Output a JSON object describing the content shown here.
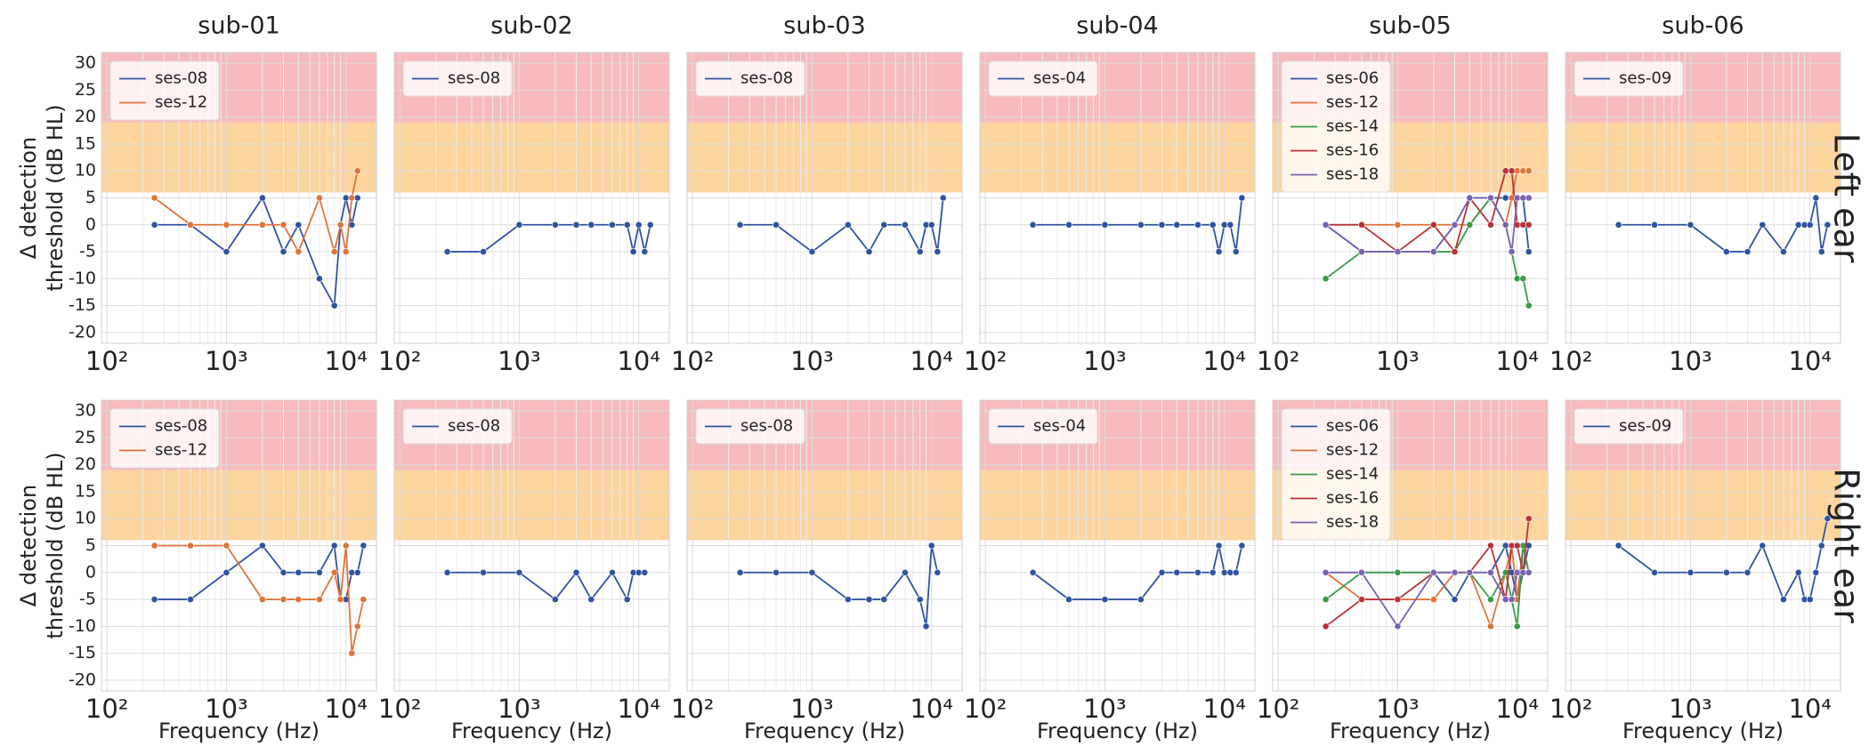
{
  "chart_data": [
    {
      "type": "line",
      "title": "sub-01",
      "ylabel": "Δ detection\nthreshold (dB HL)",
      "ytick_labels": true,
      "x": [
        250,
        500,
        1000,
        2000,
        3000,
        4000,
        6000,
        8000,
        9000,
        10000,
        11200,
        12500
      ],
      "series": [
        {
          "name": "ses-08",
          "color": "#2f53a0",
          "values": [
            0,
            0,
            -5,
            5,
            -5,
            0,
            -10,
            -15,
            0,
            5,
            0,
            5
          ]
        },
        {
          "name": "ses-12",
          "color": "#dd7439",
          "values": [
            5,
            0,
            0,
            0,
            0,
            -5,
            5,
            -5,
            0,
            -5,
            5,
            10
          ]
        }
      ],
      "xlim": [
        90,
        18000
      ],
      "log_x": true,
      "ylim": [
        -22,
        32
      ],
      "xticks": [
        {
          "value": 100,
          "label": "10²"
        },
        {
          "value": 1000,
          "label": "10³"
        },
        {
          "value": 10000,
          "label": "10⁴"
        }
      ],
      "yticks": [
        -20,
        -15,
        -10,
        -5,
        0,
        5,
        10,
        15,
        20,
        25,
        30
      ],
      "grid": true,
      "legend": "upper left",
      "bands": [
        {
          "from": 6,
          "to": 19,
          "color": "#fdd39a"
        },
        {
          "from": 19,
          "to": 32,
          "color": "#f7b7b9"
        }
      ]
    },
    {
      "type": "line",
      "title": "sub-02",
      "ytick_labels": false,
      "x": [
        250,
        500,
        1000,
        2000,
        3000,
        4000,
        6000,
        8000,
        9000,
        10000,
        11200,
        12500
      ],
      "series": [
        {
          "name": "ses-08",
          "color": "#2f53a0",
          "values": [
            -5,
            -5,
            0,
            0,
            0,
            0,
            0,
            0,
            -5,
            0,
            -5,
            0
          ]
        }
      ],
      "xlim": [
        90,
        18000
      ],
      "log_x": true,
      "ylim": [
        -22,
        32
      ],
      "xticks": [
        {
          "value": 100,
          "label": "10²"
        },
        {
          "value": 1000,
          "label": "10³"
        },
        {
          "value": 10000,
          "label": "10⁴"
        }
      ],
      "yticks": [
        -20,
        -15,
        -10,
        -5,
        0,
        5,
        10,
        15,
        20,
        25,
        30
      ],
      "grid": true,
      "legend": "upper left",
      "bands": [
        {
          "from": 6,
          "to": 19,
          "color": "#fdd39a"
        },
        {
          "from": 19,
          "to": 32,
          "color": "#f7b7b9"
        }
      ]
    },
    {
      "type": "line",
      "title": "sub-03",
      "ytick_labels": false,
      "x": [
        250,
        500,
        1000,
        2000,
        3000,
        4000,
        6000,
        8000,
        9000,
        10000,
        11200,
        12500
      ],
      "series": [
        {
          "name": "ses-08",
          "color": "#2f53a0",
          "values": [
            0,
            0,
            -5,
            0,
            -5,
            0,
            0,
            -5,
            0,
            0,
            -5,
            5
          ]
        }
      ],
      "xlim": [
        90,
        18000
      ],
      "log_x": true,
      "ylim": [
        -22,
        32
      ],
      "xticks": [
        {
          "value": 100,
          "label": "10²"
        },
        {
          "value": 1000,
          "label": "10³"
        },
        {
          "value": 10000,
          "label": "10⁴"
        }
      ],
      "yticks": [
        -20,
        -15,
        -10,
        -5,
        0,
        5,
        10,
        15,
        20,
        25,
        30
      ],
      "grid": true,
      "legend": "upper left",
      "bands": [
        {
          "from": 6,
          "to": 19,
          "color": "#fdd39a"
        },
        {
          "from": 19,
          "to": 32,
          "color": "#f7b7b9"
        }
      ]
    },
    {
      "type": "line",
      "title": "sub-04",
      "ytick_labels": false,
      "x": [
        250,
        500,
        1000,
        2000,
        3000,
        4000,
        6000,
        8000,
        9000,
        10000,
        11200,
        12500,
        14000
      ],
      "series": [
        {
          "name": "ses-04",
          "color": "#2f53a0",
          "values": [
            0,
            0,
            0,
            0,
            0,
            0,
            0,
            0,
            -5,
            0,
            0,
            -5,
            5
          ]
        }
      ],
      "xlim": [
        90,
        18000
      ],
      "log_x": true,
      "ylim": [
        -22,
        32
      ],
      "xticks": [
        {
          "value": 100,
          "label": "10²"
        },
        {
          "value": 1000,
          "label": "10³"
        },
        {
          "value": 10000,
          "label": "10⁴"
        }
      ],
      "yticks": [
        -20,
        -15,
        -10,
        -5,
        0,
        5,
        10,
        15,
        20,
        25,
        30
      ],
      "grid": true,
      "legend": "upper left",
      "bands": [
        {
          "from": 6,
          "to": 19,
          "color": "#fdd39a"
        },
        {
          "from": 19,
          "to": 32,
          "color": "#f7b7b9"
        }
      ]
    },
    {
      "type": "line",
      "title": "sub-05",
      "ytick_labels": false,
      "x": [
        250,
        500,
        1000,
        2000,
        3000,
        4000,
        6000,
        8000,
        9000,
        10000,
        11200,
        12500
      ],
      "series": [
        {
          "name": "ses-06",
          "color": "#2f53a0",
          "values": [
            0,
            -5,
            -5,
            -5,
            0,
            5,
            5,
            5,
            5,
            5,
            5,
            -5
          ]
        },
        {
          "name": "ses-12",
          "color": "#dd7439",
          "values": [
            0,
            0,
            0,
            0,
            0,
            0,
            5,
            0,
            5,
            10,
            10,
            10
          ]
        },
        {
          "name": "ses-14",
          "color": "#3a9a48",
          "values": [
            -10,
            -5,
            -5,
            -5,
            -5,
            0,
            5,
            0,
            -5,
            -10,
            -10,
            -15
          ]
        },
        {
          "name": "ses-16",
          "color": "#b8323a",
          "values": [
            0,
            0,
            -5,
            0,
            -5,
            5,
            0,
            10,
            10,
            0,
            0,
            0
          ]
        },
        {
          "name": "ses-18",
          "color": "#7a62b0",
          "values": [
            0,
            -5,
            -5,
            -5,
            0,
            5,
            5,
            0,
            -5,
            5,
            5,
            5
          ]
        }
      ],
      "xlim": [
        90,
        18000
      ],
      "log_x": true,
      "ylim": [
        -22,
        32
      ],
      "xticks": [
        {
          "value": 100,
          "label": "10²"
        },
        {
          "value": 1000,
          "label": "10³"
        },
        {
          "value": 10000,
          "label": "10⁴"
        }
      ],
      "yticks": [
        -20,
        -15,
        -10,
        -5,
        0,
        5,
        10,
        15,
        20,
        25,
        30
      ],
      "grid": true,
      "legend": "upper left",
      "bands": [
        {
          "from": 6,
          "to": 19,
          "color": "#fdd39a"
        },
        {
          "from": 19,
          "to": 32,
          "color": "#f7b7b9"
        }
      ]
    },
    {
      "type": "line",
      "title": "sub-06",
      "row_label": "Left ear",
      "ytick_labels": false,
      "x": [
        250,
        500,
        1000,
        2000,
        3000,
        4000,
        6000,
        8000,
        9000,
        10000,
        11200,
        12500,
        14000
      ],
      "series": [
        {
          "name": "ses-09",
          "color": "#2f53a0",
          "values": [
            0,
            0,
            0,
            -5,
            -5,
            0,
            -5,
            0,
            0,
            0,
            5,
            -5,
            0
          ]
        }
      ],
      "xlim": [
        90,
        18000
      ],
      "log_x": true,
      "ylim": [
        -22,
        32
      ],
      "xticks": [
        {
          "value": 100,
          "label": "10²"
        },
        {
          "value": 1000,
          "label": "10³"
        },
        {
          "value": 10000,
          "label": "10⁴"
        }
      ],
      "yticks": [
        -20,
        -15,
        -10,
        -5,
        0,
        5,
        10,
        15,
        20,
        25,
        30
      ],
      "grid": true,
      "legend": "upper left",
      "bands": [
        {
          "from": 6,
          "to": 19,
          "color": "#fdd39a"
        },
        {
          "from": 19,
          "to": 32,
          "color": "#f7b7b9"
        }
      ]
    },
    {
      "type": "line",
      "ylabel": "Δ detection\nthreshold (dB HL)",
      "xlabel": "Frequency (Hz)",
      "ytick_labels": true,
      "x": [
        250,
        500,
        1000,
        2000,
        3000,
        4000,
        6000,
        8000,
        9000,
        10000,
        11200,
        12500,
        14000
      ],
      "series": [
        {
          "name": "ses-08",
          "color": "#2f53a0",
          "values": [
            -5,
            -5,
            0,
            5,
            0,
            0,
            0,
            5,
            -5,
            -5,
            0,
            0,
            5
          ]
        },
        {
          "name": "ses-12",
          "color": "#dd7439",
          "values": [
            5,
            5,
            5,
            -5,
            -5,
            -5,
            -5,
            0,
            -5,
            5,
            -15,
            -10,
            -5
          ]
        }
      ],
      "xlim": [
        90,
        18000
      ],
      "log_x": true,
      "ylim": [
        -22,
        32
      ],
      "xticks": [
        {
          "value": 100,
          "label": "10²"
        },
        {
          "value": 1000,
          "label": "10³"
        },
        {
          "value": 10000,
          "label": "10⁴"
        }
      ],
      "yticks": [
        -20,
        -15,
        -10,
        -5,
        0,
        5,
        10,
        15,
        20,
        25,
        30
      ],
      "grid": true,
      "legend": "upper left",
      "bands": [
        {
          "from": 6,
          "to": 19,
          "color": "#fdd39a"
        },
        {
          "from": 19,
          "to": 32,
          "color": "#f7b7b9"
        }
      ]
    },
    {
      "type": "line",
      "xlabel": "Frequency (Hz)",
      "ytick_labels": false,
      "x": [
        250,
        500,
        1000,
        2000,
        3000,
        4000,
        6000,
        8000,
        9000,
        10000,
        11200
      ],
      "series": [
        {
          "name": "ses-08",
          "color": "#2f53a0",
          "values": [
            0,
            0,
            0,
            -5,
            0,
            -5,
            0,
            -5,
            0,
            0,
            0
          ]
        }
      ],
      "xlim": [
        90,
        18000
      ],
      "log_x": true,
      "ylim": [
        -22,
        32
      ],
      "xticks": [
        {
          "value": 100,
          "label": "10²"
        },
        {
          "value": 1000,
          "label": "10³"
        },
        {
          "value": 10000,
          "label": "10⁴"
        }
      ],
      "yticks": [
        -20,
        -15,
        -10,
        -5,
        0,
        5,
        10,
        15,
        20,
        25,
        30
      ],
      "grid": true,
      "legend": "upper left",
      "bands": [
        {
          "from": 6,
          "to": 19,
          "color": "#fdd39a"
        },
        {
          "from": 19,
          "to": 32,
          "color": "#f7b7b9"
        }
      ]
    },
    {
      "type": "line",
      "xlabel": "Frequency (Hz)",
      "ytick_labels": false,
      "x": [
        250,
        500,
        1000,
        2000,
        3000,
        4000,
        6000,
        8000,
        9000,
        10000,
        11200
      ],
      "series": [
        {
          "name": "ses-08",
          "color": "#2f53a0",
          "values": [
            0,
            0,
            0,
            -5,
            -5,
            -5,
            0,
            -5,
            -10,
            5,
            0
          ]
        }
      ],
      "xlim": [
        90,
        18000
      ],
      "log_x": true,
      "ylim": [
        -22,
        32
      ],
      "xticks": [
        {
          "value": 100,
          "label": "10²"
        },
        {
          "value": 1000,
          "label": "10³"
        },
        {
          "value": 10000,
          "label": "10⁴"
        }
      ],
      "yticks": [
        -20,
        -15,
        -10,
        -5,
        0,
        5,
        10,
        15,
        20,
        25,
        30
      ],
      "grid": true,
      "legend": "upper left",
      "bands": [
        {
          "from": 6,
          "to": 19,
          "color": "#fdd39a"
        },
        {
          "from": 19,
          "to": 32,
          "color": "#f7b7b9"
        }
      ]
    },
    {
      "type": "line",
      "xlabel": "Frequency (Hz)",
      "ytick_labels": false,
      "x": [
        250,
        500,
        1000,
        2000,
        3000,
        4000,
        6000,
        8000,
        9000,
        10000,
        11200,
        12500,
        14000
      ],
      "series": [
        {
          "name": "ses-04",
          "color": "#2f53a0",
          "values": [
            0,
            -5,
            -5,
            -5,
            0,
            0,
            0,
            0,
            5,
            0,
            0,
            0,
            5
          ]
        }
      ],
      "xlim": [
        90,
        18000
      ],
      "log_x": true,
      "ylim": [
        -22,
        32
      ],
      "xticks": [
        {
          "value": 100,
          "label": "10²"
        },
        {
          "value": 1000,
          "label": "10³"
        },
        {
          "value": 10000,
          "label": "10⁴"
        }
      ],
      "yticks": [
        -20,
        -15,
        -10,
        -5,
        0,
        5,
        10,
        15,
        20,
        25,
        30
      ],
      "grid": true,
      "legend": "upper left",
      "bands": [
        {
          "from": 6,
          "to": 19,
          "color": "#fdd39a"
        },
        {
          "from": 19,
          "to": 32,
          "color": "#f7b7b9"
        }
      ]
    },
    {
      "type": "line",
      "xlabel": "Frequency (Hz)",
      "ytick_labels": false,
      "x": [
        250,
        500,
        1000,
        2000,
        3000,
        4000,
        6000,
        8000,
        9000,
        10000,
        11200,
        12500
      ],
      "series": [
        {
          "name": "ses-06",
          "color": "#2f53a0",
          "values": [
            0,
            0,
            0,
            0,
            -5,
            0,
            0,
            5,
            0,
            -5,
            0,
            5
          ]
        },
        {
          "name": "ses-12",
          "color": "#dd7439",
          "values": [
            0,
            -5,
            -5,
            -5,
            0,
            0,
            -10,
            0,
            5,
            -5,
            5,
            0
          ]
        },
        {
          "name": "ses-14",
          "color": "#3a9a48",
          "values": [
            -5,
            0,
            0,
            0,
            0,
            0,
            -5,
            0,
            -5,
            -10,
            5,
            0
          ]
        },
        {
          "name": "ses-16",
          "color": "#b8323a",
          "values": [
            -10,
            -5,
            -5,
            0,
            0,
            0,
            5,
            -5,
            5,
            5,
            0,
            10
          ]
        },
        {
          "name": "ses-18",
          "color": "#7a62b0",
          "values": [
            0,
            0,
            -10,
            0,
            0,
            0,
            0,
            -5,
            -5,
            0,
            0,
            0
          ]
        }
      ],
      "xlim": [
        90,
        18000
      ],
      "log_x": true,
      "ylim": [
        -22,
        32
      ],
      "xticks": [
        {
          "value": 100,
          "label": "10²"
        },
        {
          "value": 1000,
          "label": "10³"
        },
        {
          "value": 10000,
          "label": "10⁴"
        }
      ],
      "yticks": [
        -20,
        -15,
        -10,
        -5,
        0,
        5,
        10,
        15,
        20,
        25,
        30
      ],
      "grid": true,
      "legend": "upper left",
      "bands": [
        {
          "from": 6,
          "to": 19,
          "color": "#fdd39a"
        },
        {
          "from": 19,
          "to": 32,
          "color": "#f7b7b9"
        }
      ]
    },
    {
      "type": "line",
      "xlabel": "Frequency (Hz)",
      "row_label": "Right ear",
      "ytick_labels": false,
      "x": [
        250,
        500,
        1000,
        2000,
        3000,
        4000,
        6000,
        8000,
        9000,
        10000,
        11200,
        12500,
        14000
      ],
      "series": [
        {
          "name": "ses-09",
          "color": "#2f53a0",
          "values": [
            5,
            0,
            0,
            0,
            0,
            5,
            -5,
            0,
            -5,
            -5,
            0,
            5,
            10
          ]
        }
      ],
      "xlim": [
        90,
        18000
      ],
      "log_x": true,
      "ylim": [
        -22,
        32
      ],
      "xticks": [
        {
          "value": 100,
          "label": "10²"
        },
        {
          "value": 1000,
          "label": "10³"
        },
        {
          "value": 10000,
          "label": "10⁴"
        }
      ],
      "yticks": [
        -20,
        -15,
        -10,
        -5,
        0,
        5,
        10,
        15,
        20,
        25,
        30
      ],
      "grid": true,
      "legend": "upper left",
      "bands": [
        {
          "from": 6,
          "to": 19,
          "color": "#fdd39a"
        },
        {
          "from": 19,
          "to": 32,
          "color": "#f7b7b9"
        }
      ]
    }
  ]
}
